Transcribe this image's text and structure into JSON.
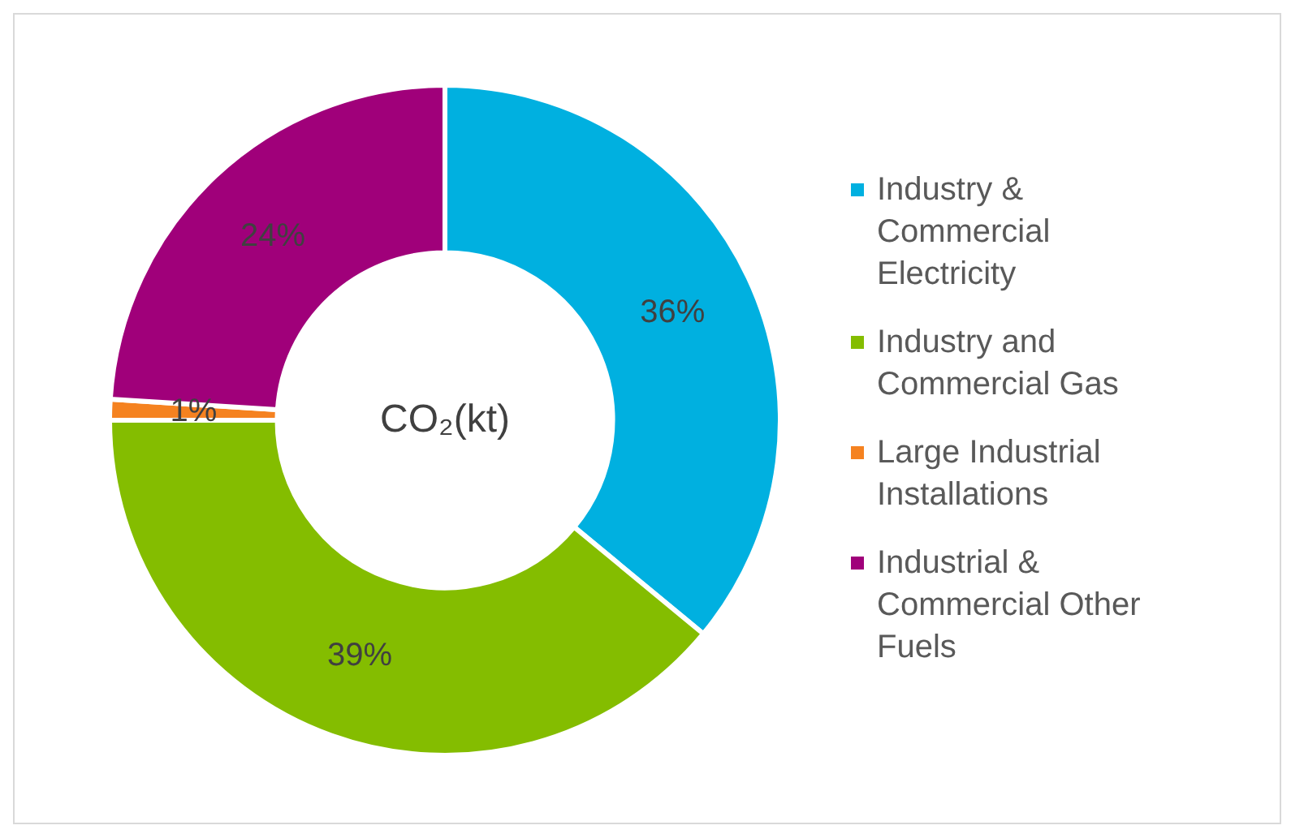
{
  "chart_data": {
    "type": "donut",
    "title": "CO₂(kt)",
    "categories": [
      "Industry & Commercial Electricity",
      "Industry and Commercial Gas",
      "Large Industrial Installations",
      "Industrial & Commercial Other Fuels"
    ],
    "values": [
      36,
      39,
      1,
      24
    ],
    "colors": [
      "#00b0e0",
      "#84bd00",
      "#f58220",
      "#a0007a"
    ],
    "value_labels": [
      "36%",
      "39%",
      "1%",
      "24%"
    ],
    "legend": "right"
  }
}
